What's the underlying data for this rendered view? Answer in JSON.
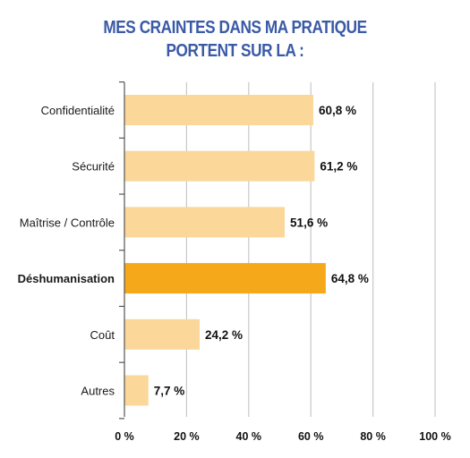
{
  "title": {
    "line1": "MES CRAINTES DANS MA PRATIQUE",
    "line2": "PORTENT SUR LA :"
  },
  "colors": {
    "bar": "#fbd79a",
    "highlight": "#f5a81a",
    "title": "#3a5aa6",
    "grid": "#c8c8c8"
  },
  "chart_data": {
    "type": "bar",
    "orientation": "horizontal",
    "categories": [
      "Confidentialité",
      "Sécurité",
      "Maîtrise / Contrôle",
      "Déshumanisation",
      "Coût",
      "Autres"
    ],
    "values": [
      60.8,
      61.2,
      51.6,
      64.8,
      24.2,
      7.7
    ],
    "value_labels": [
      "60,8 %",
      "61,2 %",
      "51,6 %",
      "64,8 %",
      "24,2 %",
      "7,7 %"
    ],
    "highlight_index": 3,
    "xlim": [
      0,
      100
    ],
    "xticks": [
      0,
      20,
      40,
      60,
      80,
      100
    ],
    "xtick_labels": [
      "0 %",
      "20 %",
      "40 %",
      "60 %",
      "80 %",
      "100 %"
    ],
    "grid": true,
    "xlabel": "",
    "ylabel": ""
  }
}
